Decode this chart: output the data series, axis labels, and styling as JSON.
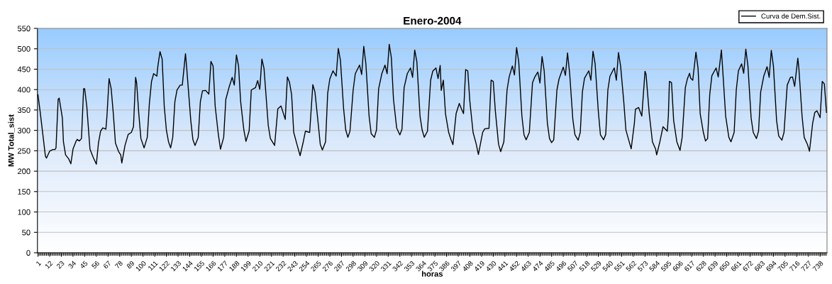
{
  "chart_data": {
    "type": "line",
    "title": "Enero-2004",
    "xlabel": "horas",
    "ylabel": "MW Total_sist",
    "x": [
      1,
      3,
      5,
      8,
      9,
      12,
      15,
      17,
      18,
      20,
      21,
      24,
      25,
      27,
      30,
      32,
      34,
      37,
      38,
      40,
      42,
      44,
      45,
      47,
      50,
      53,
      56,
      58,
      60,
      62,
      65,
      66,
      68,
      70,
      72,
      74,
      77,
      79,
      80,
      83,
      86,
      89,
      91,
      93,
      94,
      96,
      98,
      101,
      104,
      106,
      108,
      110,
      113,
      114,
      116,
      118,
      120,
      122,
      124,
      126,
      128,
      130,
      132,
      135,
      137,
      140,
      141,
      145,
      147,
      149,
      152,
      154,
      156,
      159,
      162,
      164,
      166,
      168,
      171,
      173,
      176,
      178,
      181,
      184,
      186,
      188,
      190,
      192,
      195,
      197,
      200,
      202,
      206,
      208,
      210,
      212,
      214,
      218,
      220,
      224,
      227,
      230,
      234,
      236,
      238,
      240,
      242,
      245,
      248,
      251,
      253,
      257,
      260,
      262,
      265,
      267,
      269,
      272,
      274,
      276,
      279,
      282,
      284,
      286,
      289,
      291,
      293,
      295,
      298,
      300,
      304,
      306,
      308,
      310,
      313,
      315,
      318,
      320,
      322,
      325,
      328,
      330,
      332,
      334,
      336,
      339,
      342,
      344,
      346,
      349,
      352,
      354,
      356,
      358,
      361,
      363,
      365,
      368,
      371,
      373,
      376,
      378,
      380,
      381,
      383,
      385,
      388,
      390,
      392,
      395,
      398,
      400,
      402,
      404,
      406,
      408,
      411,
      414,
      416,
      420,
      422,
      426,
      428,
      430,
      432,
      435,
      437,
      440,
      443,
      445,
      448,
      450,
      452,
      454,
      457,
      459,
      461,
      464,
      467,
      469,
      472,
      474,
      476,
      478,
      481,
      483,
      485,
      487,
      490,
      492,
      496,
      498,
      500,
      502,
      505,
      507,
      510,
      512,
      514,
      516,
      520,
      522,
      524,
      526,
      529,
      531,
      534,
      536,
      538,
      540,
      544,
      546,
      548,
      550,
      553,
      555,
      558,
      560,
      563,
      564,
      567,
      570,
      573,
      574,
      577,
      580,
      583,
      584,
      587,
      590,
      594,
      595,
      596,
      598,
      600,
      603,
      606,
      608,
      611,
      613,
      615,
      616,
      618,
      621,
      623,
      625,
      628,
      630,
      632,
      634,
      636,
      640,
      642,
      645,
      646,
      649,
      652,
      654,
      657,
      659,
      661,
      664,
      666,
      668,
      670,
      673,
      675,
      678,
      680,
      682,
      685,
      688,
      690,
      692,
      694,
      697,
      699,
      702,
      704,
      707,
      710,
      712,
      714,
      717,
      718,
      721,
      723,
      726,
      728,
      731,
      733,
      735,
      738,
      740,
      742,
      744
    ],
    "series": [
      {
        "name": "Curva de Dem.Sist.",
        "color": "#000000",
        "values": [
          387,
          347,
          303,
          237,
          232,
          249,
          253,
          253,
          257,
          376,
          379,
          330,
          272,
          240,
          230,
          218,
          254,
          274,
          278,
          274,
          280,
          402,
          402,
          359,
          254,
          234,
          217,
          269,
          298,
          306,
          303,
          335,
          427,
          402,
          341,
          269,
          248,
          240,
          220,
          263,
          290,
          295,
          309,
          430,
          416,
          341,
          280,
          257,
          283,
          367,
          420,
          439,
          433,
          458,
          493,
          475,
          359,
          301,
          272,
          257,
          283,
          370,
          399,
          411,
          411,
          488,
          458,
          324,
          277,
          263,
          283,
          370,
          397,
          398,
          389,
          469,
          458,
          359,
          289,
          254,
          283,
          376,
          405,
          430,
          411,
          485,
          458,
          370,
          301,
          273,
          299,
          399,
          405,
          422,
          401,
          475,
          452,
          312,
          280,
          263,
          353,
          360,
          327,
          431,
          418,
          388,
          295,
          266,
          238,
          272,
          298,
          295,
          412,
          394,
          318,
          266,
          252,
          272,
          391,
          426,
          446,
          433,
          501,
          472,
          353,
          301,
          283,
          298,
          399,
          439,
          460,
          437,
          506,
          463,
          335,
          292,
          283,
          301,
          402,
          439,
          460,
          439,
          511,
          478,
          376,
          306,
          289,
          303,
          405,
          439,
          453,
          430,
          497,
          469,
          335,
          301,
          283,
          298,
          423,
          445,
          453,
          427,
          459,
          398,
          423,
          341,
          295,
          279,
          265,
          341,
          366,
          353,
          341,
          449,
          446,
          370,
          295,
          266,
          241,
          295,
          304,
          305,
          423,
          420,
          347,
          266,
          248,
          272,
          399,
          431,
          458,
          436,
          503,
          469,
          335,
          289,
          277,
          295,
          417,
          430,
          443,
          416,
          481,
          446,
          318,
          280,
          270,
          277,
          399,
          426,
          455,
          435,
          490,
          440,
          327,
          289,
          276,
          295,
          394,
          428,
          446,
          423,
          494,
          463,
          347,
          289,
          277,
          290,
          399,
          433,
          453,
          423,
          491,
          458,
          370,
          301,
          273,
          255,
          318,
          352,
          356,
          335,
          445,
          437,
          341,
          272,
          254,
          240,
          272,
          309,
          298,
          335,
          420,
          417,
          324,
          272,
          251,
          283,
          405,
          427,
          440,
          428,
          423,
          492,
          452,
          341,
          295,
          274,
          280,
          388,
          434,
          453,
          431,
          497,
          458,
          335,
          283,
          272,
          295,
          399,
          446,
          463,
          440,
          499,
          458,
          330,
          295,
          280,
          298,
          394,
          434,
          456,
          430,
          496,
          458,
          324,
          286,
          276,
          295,
          411,
          430,
          431,
          408,
          477,
          452,
          335,
          283,
          266,
          249,
          318,
          344,
          348,
          331,
          420,
          414,
          344
        ]
      }
    ],
    "xlim": [
      0.5,
      744.5
    ],
    "xticks": [
      1,
      12,
      23,
      34,
      45,
      56,
      67,
      78,
      89,
      100,
      111,
      122,
      133,
      144,
      155,
      166,
      177,
      188,
      199,
      210,
      221,
      232,
      243,
      254,
      265,
      276,
      287,
      298,
      309,
      320,
      331,
      342,
      353,
      364,
      375,
      386,
      397,
      408,
      419,
      430,
      441,
      452,
      463,
      474,
      485,
      496,
      507,
      518,
      529,
      540,
      551,
      562,
      573,
      584,
      595,
      606,
      617,
      628,
      639,
      650,
      661,
      672,
      683,
      694,
      705,
      716,
      727,
      738
    ],
    "ylim": [
      0,
      550
    ],
    "yticks": [
      0,
      50,
      100,
      150,
      200,
      250,
      300,
      350,
      400,
      450,
      500,
      550
    ],
    "grid": "y",
    "legend": "top right",
    "line_style": "solid",
    "marker": "none"
  }
}
